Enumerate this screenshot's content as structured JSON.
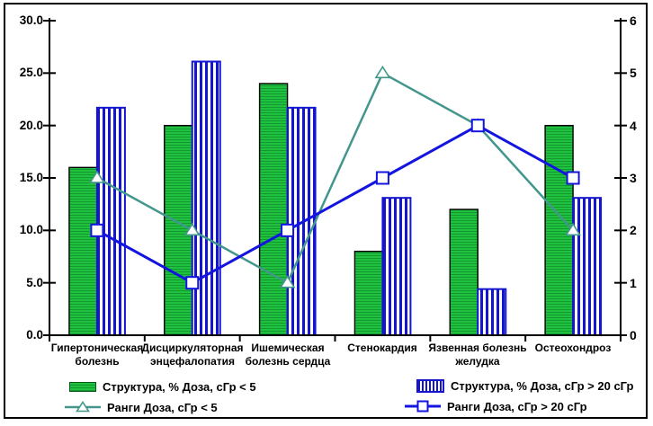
{
  "chart_data": {
    "type": "combo (grouped bars + ranked lines)",
    "categories": [
      "Гипертоническая болезнь",
      "Дисциркуляторная энцефалопатия",
      "Ишемическая болезнь сердца",
      "Стенокардия",
      "Язвенная болезнь желудка",
      "Остеохондроз"
    ],
    "series": [
      {
        "name": "Структура, % Доза, сГр < 5",
        "type": "bar",
        "axis": "left",
        "values": [
          16,
          20,
          24,
          8,
          12,
          20
        ],
        "style": "green-horizontal-stripes"
      },
      {
        "name": "Структура, % Доза, сГр > 20 сГр",
        "type": "bar",
        "axis": "left",
        "values": [
          21.7,
          26.1,
          21.7,
          13.1,
          4.4,
          13.1
        ],
        "style": "blue-vertical-stripes"
      },
      {
        "name": "Ранги Доза, сГр < 5",
        "type": "line",
        "axis": "right",
        "values": [
          3,
          2,
          1,
          5,
          4,
          2
        ],
        "marker": "triangle"
      },
      {
        "name": "Ранги Доза, сГр > 20 сГр",
        "type": "line",
        "axis": "right",
        "values": [
          2,
          1,
          2,
          3,
          4,
          3
        ],
        "marker": "square"
      }
    ],
    "left_axis": {
      "min": 0,
      "max": 30,
      "tick_labels": [
        "0.0",
        "5.0",
        "10.0",
        "15.0",
        "20.0",
        "25.0",
        "30.0"
      ]
    },
    "right_axis": {
      "min": 0,
      "max": 6,
      "tick_labels": [
        "0",
        "1",
        "2",
        "3",
        "4",
        "5",
        "6"
      ]
    },
    "legend_position": "bottom, two columns",
    "grid": false,
    "title": ""
  },
  "colors": {
    "bar_green_fill": "#1fc13f",
    "bar_green_stripe": "#12992f",
    "bar_green_border": "#000000",
    "bar_blue": "#1515d0",
    "line_teal": "#43968c",
    "line_blue": "#1414e0",
    "marker_fill": "#ffffff",
    "axis": "#000000",
    "background": "#ffffff"
  }
}
